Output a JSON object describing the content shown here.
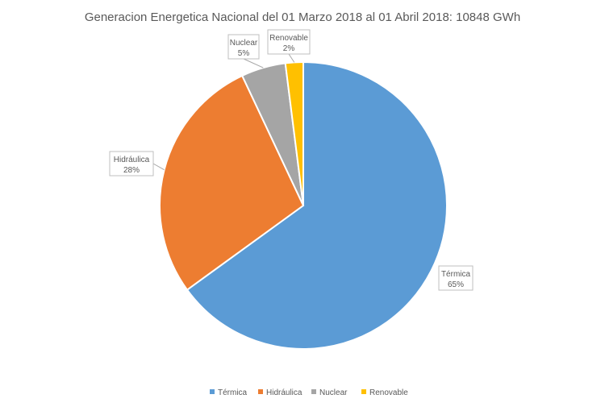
{
  "chart_data": {
    "type": "pie",
    "title": "Generacion  Energetica Nacional del 01 Marzo 2018 al 01 Abril 2018: 10848 GWh",
    "categories": [
      "Térmica",
      "Hidráulica",
      "Nuclear",
      "Renovable"
    ],
    "values": [
      65,
      28,
      5,
      2
    ],
    "value_labels": [
      "65%",
      "28%",
      "5%",
      "2%"
    ],
    "colors": [
      "#5B9BD5",
      "#ED7D31",
      "#A5A5A5",
      "#FFC000"
    ],
    "legend": "bottom"
  }
}
